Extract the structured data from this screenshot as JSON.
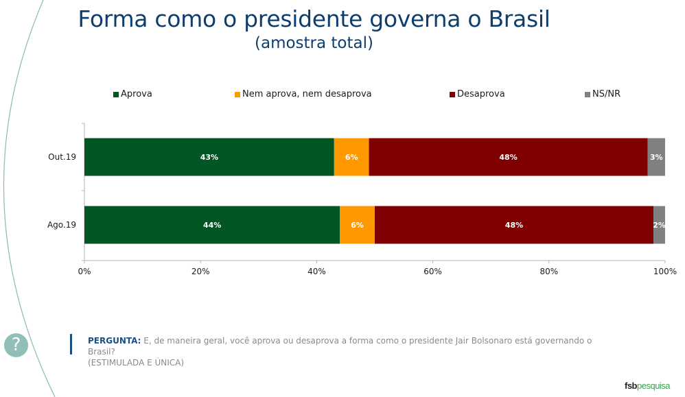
{
  "header": {
    "title": "Forma como o presidente governa o Brasil",
    "subtitle": "(amostra total)"
  },
  "chart_data": {
    "type": "bar",
    "orientation": "horizontal",
    "stacked": true,
    "title": "Forma como o presidente governa o Brasil",
    "subtitle": "(amostra total)",
    "categories": [
      "Out.19",
      "Ago.19"
    ],
    "series": [
      {
        "name": "Aprova",
        "color": "#025623",
        "values": [
          43,
          44
        ],
        "labels": [
          "43%",
          "44%"
        ]
      },
      {
        "name": "Nem aprova, nem desaprova",
        "color": "#ff9900",
        "values": [
          6,
          6
        ],
        "labels": [
          "6%",
          "6%"
        ]
      },
      {
        "name": "Desaprova",
        "color": "#7f0000",
        "values": [
          48,
          48
        ],
        "labels": [
          "48%",
          "48%"
        ]
      },
      {
        "name": "NS/NR",
        "color": "#808080",
        "values": [
          3,
          2
        ],
        "labels": [
          "3%",
          "2%"
        ]
      }
    ],
    "xlim": [
      0,
      100
    ],
    "xticks": [
      "0%",
      "20%",
      "40%",
      "60%",
      "80%",
      "100%"
    ],
    "xtick_values": [
      0,
      20,
      40,
      60,
      80,
      100
    ],
    "xlabel": "",
    "ylabel": "",
    "grid": false,
    "legend_position": "top"
  },
  "question": {
    "label": "PERGUNTA:",
    "text": " E, de maneira geral, você aprova ou desaprova a forma como o presidente Jair Bolsonaro está governando o Brasil?",
    "note": "(ESTIMULADA E ÚNICA)"
  },
  "icons": {
    "help": "?"
  },
  "brand": {
    "part1": "fsb",
    "part2": "pesquisa"
  }
}
